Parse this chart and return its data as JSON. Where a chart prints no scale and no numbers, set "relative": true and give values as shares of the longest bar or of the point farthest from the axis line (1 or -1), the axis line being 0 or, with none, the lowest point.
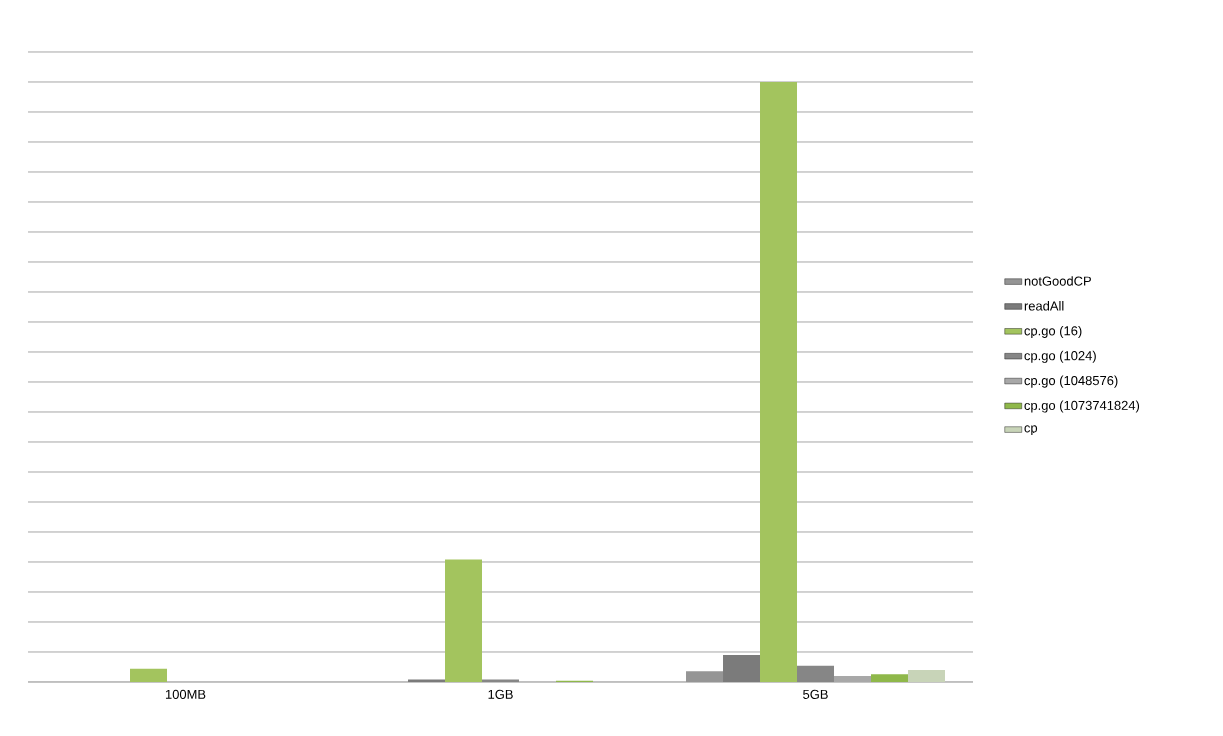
{
  "chart_data": {
    "type": "bar",
    "relative": true,
    "categories": [
      "100MB",
      "1GB",
      "5GB"
    ],
    "grid": "y",
    "legend": "right",
    "series": [
      {
        "name": "notGoodCP",
        "color": "#959595",
        "values": [
          null,
          null,
          0.018
        ]
      },
      {
        "name": "readAll",
        "color": "#7b7b7b",
        "values": [
          null,
          0.004,
          0.045
        ]
      },
      {
        "name": "cp.go (16)",
        "color": "#a3c45e",
        "values": [
          0.022,
          0.204,
          1.0
        ]
      },
      {
        "name": "cp.go (1024)",
        "color": "#868686",
        "values": [
          null,
          0.004,
          0.027
        ]
      },
      {
        "name": "cp.go (1048576)",
        "color": "#a8a8a8",
        "values": [
          null,
          null,
          0.01
        ]
      },
      {
        "name": "cp.go (1073741824)",
        "color": "#8fb84a",
        "values": [
          null,
          0.002,
          0.013
        ]
      },
      {
        "name": "cp",
        "color": "#c8d4b8",
        "values": [
          null,
          null,
          0.02
        ]
      }
    ]
  }
}
